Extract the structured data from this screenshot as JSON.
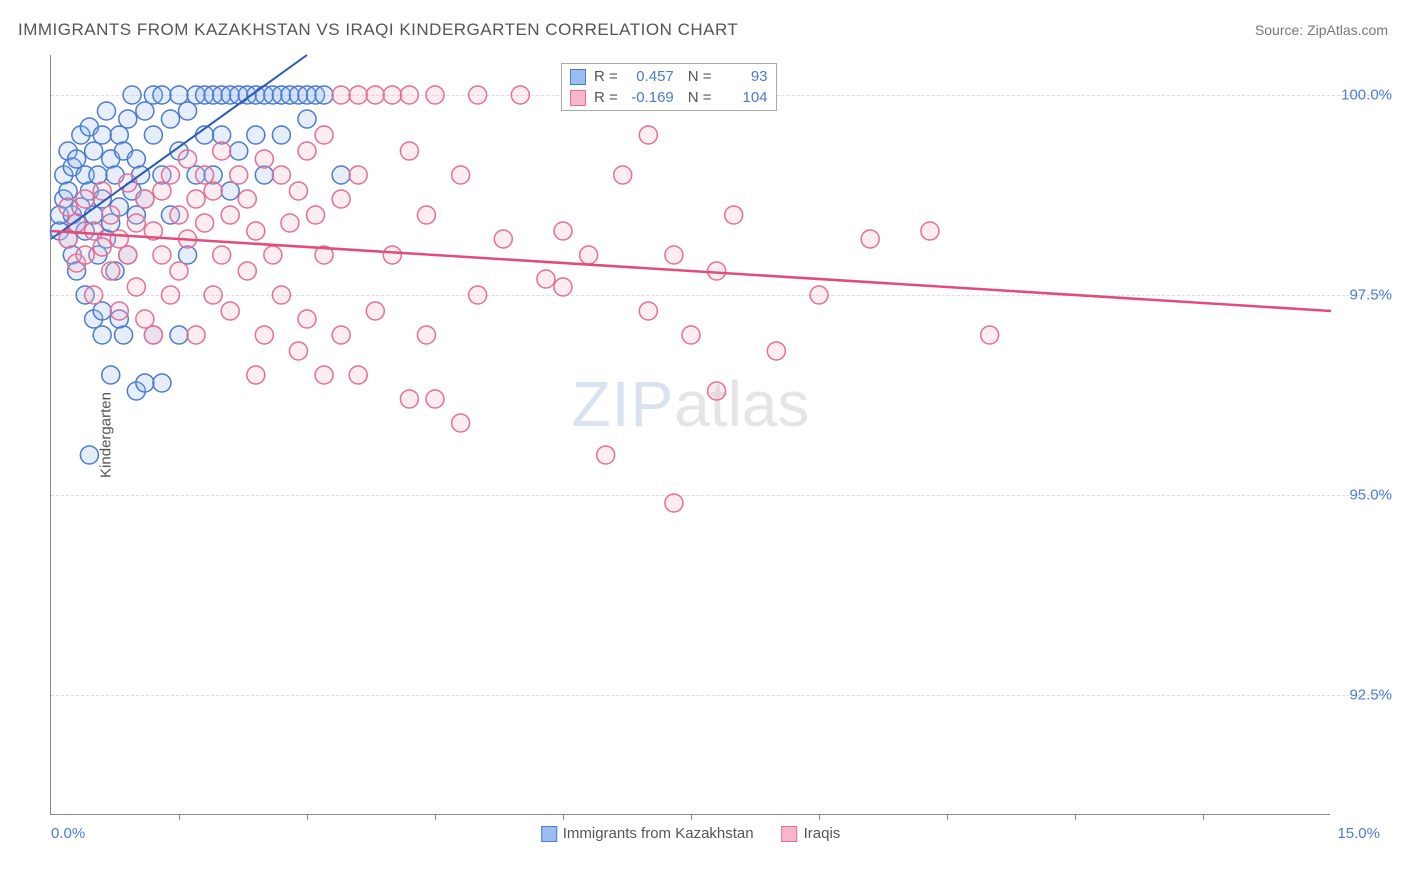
{
  "title": "IMMIGRANTS FROM KAZAKHSTAN VS IRAQI KINDERGARTEN CORRELATION CHART",
  "source": "Source: ZipAtlas.com",
  "ylabel": "Kindergarten",
  "watermark_a": "ZIP",
  "watermark_b": "atlas",
  "xaxis_min_label": "0.0%",
  "xaxis_max_label": "15.0%",
  "legend_bottom": [
    {
      "label": "Immigrants from Kazakhstan",
      "fill": "#9cbdf0",
      "stroke": "#4a7bd0"
    },
    {
      "label": "Iraqis",
      "fill": "#f6b8c8",
      "stroke": "#e36f94"
    }
  ],
  "stat_box": [
    {
      "fill": "#9cbdf0",
      "stroke": "#4a7bd0",
      "r_label": "R =",
      "r_val": "0.457",
      "n_label": "N =",
      "n_val": "93"
    },
    {
      "fill": "#f6b8c8",
      "stroke": "#e36f94",
      "r_label": "R =",
      "r_val": "-0.169",
      "n_label": "N =",
      "n_val": "104"
    }
  ],
  "chart": {
    "type": "scatter",
    "xlim": [
      0,
      15
    ],
    "ylim": [
      91,
      100.5
    ],
    "xtick_positions_pct": [
      10,
      20,
      30,
      40,
      50,
      60,
      70,
      80,
      90
    ],
    "yticks": [
      {
        "y": 100.0,
        "label": "100.0%"
      },
      {
        "y": 97.5,
        "label": "97.5%"
      },
      {
        "y": 95.0,
        "label": "95.0%"
      },
      {
        "y": 92.5,
        "label": "92.5%"
      }
    ],
    "marker_radius": 9,
    "marker_stroke_width": 1.5,
    "marker_fill_opacity": 0.25,
    "background_color": "#ffffff",
    "grid_color": "#dddddd",
    "series": [
      {
        "name": "kazakhstan",
        "color_fill": "#9cbdf0",
        "color_stroke": "#4a7bd0",
        "trend": {
          "x1": 0,
          "y1": 98.2,
          "x2": 3.0,
          "y2": 100.5,
          "stroke": "#2a5ab5",
          "width": 2
        },
        "points": [
          [
            0.1,
            98.3
          ],
          [
            0.1,
            98.5
          ],
          [
            0.15,
            98.7
          ],
          [
            0.15,
            99.0
          ],
          [
            0.2,
            98.2
          ],
          [
            0.2,
            98.8
          ],
          [
            0.2,
            99.3
          ],
          [
            0.25,
            98.0
          ],
          [
            0.25,
            98.5
          ],
          [
            0.25,
            99.1
          ],
          [
            0.3,
            97.8
          ],
          [
            0.3,
            98.4
          ],
          [
            0.3,
            99.2
          ],
          [
            0.35,
            98.6
          ],
          [
            0.35,
            99.5
          ],
          [
            0.4,
            97.5
          ],
          [
            0.4,
            98.3
          ],
          [
            0.4,
            99.0
          ],
          [
            0.45,
            98.8
          ],
          [
            0.45,
            99.6
          ],
          [
            0.5,
            97.2
          ],
          [
            0.5,
            98.5
          ],
          [
            0.5,
            99.3
          ],
          [
            0.55,
            98.0
          ],
          [
            0.55,
            99.0
          ],
          [
            0.6,
            97.0
          ],
          [
            0.6,
            98.7
          ],
          [
            0.6,
            99.5
          ],
          [
            0.65,
            98.2
          ],
          [
            0.65,
            99.8
          ],
          [
            0.7,
            96.5
          ],
          [
            0.7,
            98.4
          ],
          [
            0.7,
            99.2
          ],
          [
            0.75,
            97.8
          ],
          [
            0.75,
            99.0
          ],
          [
            0.8,
            98.6
          ],
          [
            0.8,
            99.5
          ],
          [
            0.85,
            97.0
          ],
          [
            0.85,
            99.3
          ],
          [
            0.9,
            98.0
          ],
          [
            0.9,
            99.7
          ],
          [
            0.95,
            98.8
          ],
          [
            0.95,
            100.0
          ],
          [
            1.0,
            96.3
          ],
          [
            1.0,
            98.5
          ],
          [
            1.0,
            99.2
          ],
          [
            1.05,
            99.0
          ],
          [
            1.1,
            96.4
          ],
          [
            1.1,
            98.7
          ],
          [
            1.1,
            99.8
          ],
          [
            1.2,
            97.0
          ],
          [
            1.2,
            99.5
          ],
          [
            1.2,
            100.0
          ],
          [
            1.3,
            96.4
          ],
          [
            1.3,
            99.0
          ],
          [
            1.3,
            100.0
          ],
          [
            1.4,
            98.5
          ],
          [
            1.4,
            99.7
          ],
          [
            1.5,
            97.0
          ],
          [
            1.5,
            99.3
          ],
          [
            1.5,
            100.0
          ],
          [
            1.6,
            98.0
          ],
          [
            1.6,
            99.8
          ],
          [
            1.7,
            99.0
          ],
          [
            1.7,
            100.0
          ],
          [
            1.8,
            99.5
          ],
          [
            1.8,
            100.0
          ],
          [
            1.9,
            99.0
          ],
          [
            1.9,
            100.0
          ],
          [
            2.0,
            99.5
          ],
          [
            2.0,
            100.0
          ],
          [
            2.1,
            98.8
          ],
          [
            2.1,
            100.0
          ],
          [
            2.2,
            99.3
          ],
          [
            2.2,
            100.0
          ],
          [
            2.3,
            100.0
          ],
          [
            2.4,
            99.5
          ],
          [
            2.4,
            100.0
          ],
          [
            2.5,
            99.0
          ],
          [
            2.5,
            100.0
          ],
          [
            2.6,
            100.0
          ],
          [
            2.7,
            99.5
          ],
          [
            2.7,
            100.0
          ],
          [
            2.8,
            100.0
          ],
          [
            2.9,
            100.0
          ],
          [
            3.0,
            99.7
          ],
          [
            3.0,
            100.0
          ],
          [
            3.1,
            100.0
          ],
          [
            3.2,
            100.0
          ],
          [
            3.4,
            99.0
          ],
          [
            0.45,
            95.5
          ],
          [
            0.6,
            97.3
          ],
          [
            0.8,
            97.2
          ]
        ]
      },
      {
        "name": "iraqis",
        "color_fill": "#f6b8c8",
        "color_stroke": "#e36f94",
        "trend": {
          "x1": 0,
          "y1": 98.3,
          "x2": 15,
          "y2": 97.3,
          "stroke": "#e14d7b",
          "width": 2.5
        },
        "points": [
          [
            0.2,
            98.2
          ],
          [
            0.2,
            98.6
          ],
          [
            0.3,
            97.9
          ],
          [
            0.3,
            98.4
          ],
          [
            0.4,
            98.0
          ],
          [
            0.4,
            98.7
          ],
          [
            0.5,
            97.5
          ],
          [
            0.5,
            98.3
          ],
          [
            0.6,
            98.1
          ],
          [
            0.6,
            98.8
          ],
          [
            0.7,
            97.8
          ],
          [
            0.7,
            98.5
          ],
          [
            0.8,
            97.3
          ],
          [
            0.8,
            98.2
          ],
          [
            0.9,
            98.0
          ],
          [
            0.9,
            98.9
          ],
          [
            1.0,
            97.6
          ],
          [
            1.0,
            98.4
          ],
          [
            1.1,
            97.2
          ],
          [
            1.1,
            98.7
          ],
          [
            1.2,
            97.0
          ],
          [
            1.2,
            98.3
          ],
          [
            1.3,
            98.0
          ],
          [
            1.3,
            98.8
          ],
          [
            1.4,
            97.5
          ],
          [
            1.4,
            99.0
          ],
          [
            1.5,
            97.8
          ],
          [
            1.5,
            98.5
          ],
          [
            1.6,
            98.2
          ],
          [
            1.6,
            99.2
          ],
          [
            1.7,
            97.0
          ],
          [
            1.7,
            98.7
          ],
          [
            1.8,
            98.4
          ],
          [
            1.8,
            99.0
          ],
          [
            1.9,
            97.5
          ],
          [
            1.9,
            98.8
          ],
          [
            2.0,
            98.0
          ],
          [
            2.0,
            99.3
          ],
          [
            2.1,
            97.3
          ],
          [
            2.1,
            98.5
          ],
          [
            2.2,
            99.0
          ],
          [
            2.3,
            97.8
          ],
          [
            2.3,
            98.7
          ],
          [
            2.4,
            96.5
          ],
          [
            2.4,
            98.3
          ],
          [
            2.5,
            97.0
          ],
          [
            2.5,
            99.2
          ],
          [
            2.6,
            98.0
          ],
          [
            2.7,
            97.5
          ],
          [
            2.7,
            99.0
          ],
          [
            2.8,
            98.4
          ],
          [
            2.9,
            96.8
          ],
          [
            2.9,
            98.8
          ],
          [
            3.0,
            97.2
          ],
          [
            3.0,
            99.3
          ],
          [
            3.1,
            98.5
          ],
          [
            3.2,
            96.5
          ],
          [
            3.2,
            98.0
          ],
          [
            3.2,
            99.5
          ],
          [
            3.4,
            97.0
          ],
          [
            3.4,
            98.7
          ],
          [
            3.4,
            100.0
          ],
          [
            3.6,
            96.5
          ],
          [
            3.6,
            99.0
          ],
          [
            3.6,
            100.0
          ],
          [
            3.8,
            97.3
          ],
          [
            3.8,
            100.0
          ],
          [
            4.0,
            98.0
          ],
          [
            4.0,
            100.0
          ],
          [
            4.2,
            96.2
          ],
          [
            4.2,
            99.3
          ],
          [
            4.2,
            100.0
          ],
          [
            4.4,
            97.0
          ],
          [
            4.4,
            98.5
          ],
          [
            4.5,
            96.2
          ],
          [
            4.5,
            100.0
          ],
          [
            4.8,
            95.9
          ],
          [
            4.8,
            99.0
          ],
          [
            5.0,
            97.5
          ],
          [
            5.0,
            100.0
          ],
          [
            5.3,
            98.2
          ],
          [
            5.5,
            100.0
          ],
          [
            5.8,
            97.7
          ],
          [
            6.0,
            98.3
          ],
          [
            6.0,
            97.6
          ],
          [
            6.2,
            100.0
          ],
          [
            6.3,
            98.0
          ],
          [
            6.5,
            95.5
          ],
          [
            6.7,
            99.0
          ],
          [
            7.0,
            97.3
          ],
          [
            7.0,
            99.5
          ],
          [
            7.3,
            98.0
          ],
          [
            7.3,
            94.9
          ],
          [
            7.5,
            97.0
          ],
          [
            7.5,
            100.0
          ],
          [
            7.8,
            97.8
          ],
          [
            7.8,
            96.3
          ],
          [
            8.0,
            98.5
          ],
          [
            8.0,
            100.0
          ],
          [
            8.5,
            96.8
          ],
          [
            9.0,
            97.5
          ],
          [
            9.6,
            98.2
          ],
          [
            10.3,
            98.3
          ],
          [
            11.0,
            97.0
          ]
        ]
      }
    ]
  }
}
